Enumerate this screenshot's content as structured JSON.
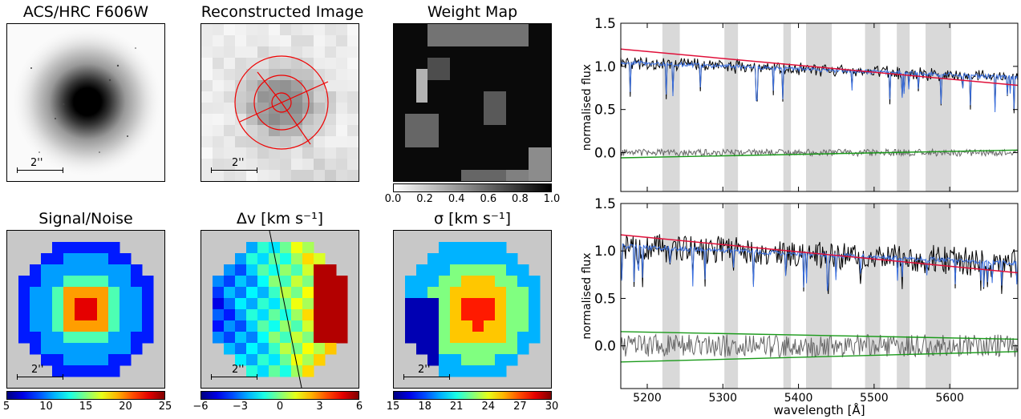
{
  "titles": {
    "acs": "ACS/HRC F606W",
    "recon": "Reconstructed Image",
    "weight": "Weight Map",
    "sn": "Signal/Noise",
    "dv": "Δv [km s⁻¹]",
    "sigma": "σ [km s⁻¹]"
  },
  "scalebar_label": "2''",
  "colorbars": {
    "weight": {
      "ticks": [
        "0.0",
        "0.2",
        "0.4",
        "0.6",
        "0.8",
        "1.0"
      ],
      "scale": "grayscale"
    },
    "sn": {
      "ticks": [
        "5",
        "10",
        "15",
        "20",
        "25"
      ],
      "scale": "jet"
    },
    "dv": {
      "ticks": [
        "−6",
        "−3",
        "0",
        "3",
        "6"
      ],
      "scale": "jet"
    },
    "sigma": {
      "ticks": [
        "15",
        "18",
        "21",
        "24",
        "27",
        "30"
      ],
      "scale": "jet"
    }
  },
  "chart_data": [
    {
      "type": "line",
      "panel": "top",
      "xlabel": "wavelength [Å]",
      "ylabel": "normalised flux",
      "xlim": [
        5165,
        5690
      ],
      "ylim": [
        -0.45,
        1.5
      ],
      "xticks": [
        5200,
        5300,
        5400,
        5500,
        5600
      ],
      "yticks": [
        0.0,
        0.5,
        1.0,
        1.5
      ],
      "masked_regions": [
        [
          5220,
          5243
        ],
        [
          5302,
          5320
        ],
        [
          5380,
          5390
        ],
        [
          5410,
          5444
        ],
        [
          5488,
          5508
        ],
        [
          5530,
          5547
        ],
        [
          5568,
          5602
        ]
      ],
      "series": [
        {
          "role": "observed spectrum",
          "color": "#000000",
          "level": 1.05,
          "noise": 0.06
        },
        {
          "role": "best-fit model",
          "color": "#3a6fe0",
          "level": 1.0
        },
        {
          "role": "continuum",
          "color": "#e0103a",
          "start": 1.2,
          "end": 0.78
        },
        {
          "role": "residuals",
          "color": "#666666",
          "level": 0.0,
          "noise": 0.04
        },
        {
          "role": "residual trend",
          "color": "#1a9a1a",
          "start": -0.06,
          "end": 0.03
        }
      ]
    },
    {
      "type": "line",
      "panel": "bottom",
      "xlabel": "wavelength [Å]",
      "ylabel": "normalised flux",
      "xlim": [
        5165,
        5690
      ],
      "ylim": [
        -0.45,
        1.5
      ],
      "xticks": [
        5200,
        5300,
        5400,
        5500,
        5600
      ],
      "yticks": [
        0.0,
        0.5,
        1.0,
        1.5
      ],
      "masked_regions": [
        [
          5220,
          5243
        ],
        [
          5302,
          5320
        ],
        [
          5380,
          5390
        ],
        [
          5410,
          5444
        ],
        [
          5488,
          5508
        ],
        [
          5530,
          5547
        ],
        [
          5568,
          5602
        ]
      ],
      "series": [
        {
          "role": "observed spectrum",
          "color": "#000000",
          "level": 1.05,
          "noise": 0.14
        },
        {
          "role": "best-fit model",
          "color": "#3a6fe0",
          "level": 1.0
        },
        {
          "role": "continuum",
          "color": "#e0103a",
          "start": 1.17,
          "end": 0.77
        },
        {
          "role": "residuals",
          "color": "#666666",
          "level": 0.0,
          "noise": 0.12
        },
        {
          "role": "upper envelope",
          "color": "#1a9a1a",
          "start": 0.15,
          "end": 0.07
        },
        {
          "role": "lower envelope",
          "color": "#1a9a1a",
          "start": -0.17,
          "end": -0.06
        }
      ]
    }
  ]
}
